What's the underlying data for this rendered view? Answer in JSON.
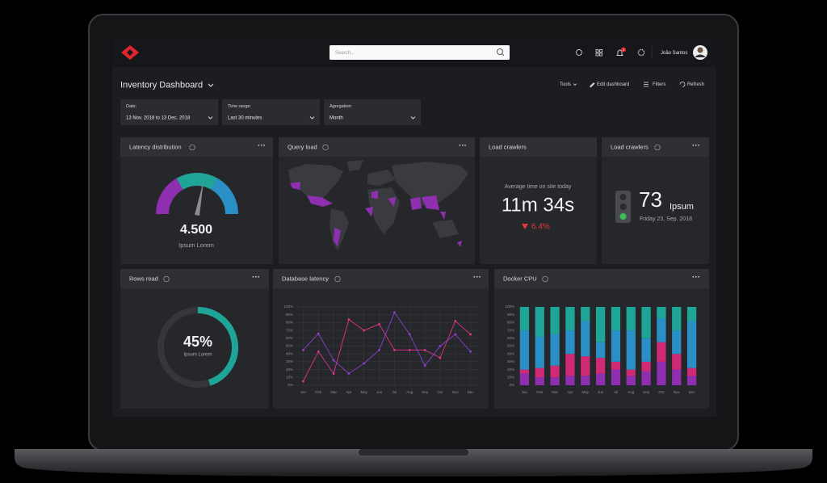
{
  "header": {
    "search_placeholder": "Search...",
    "notification_count": "3",
    "user_name": "João Santos"
  },
  "toolbar": {
    "title": "Inventory Dashboard",
    "actions": [
      "Tools",
      "Edit dashboard",
      "Filters",
      "Refresh"
    ]
  },
  "filters": [
    {
      "label": "Date:",
      "value": "13 Nov. 2018 to 13 Dec. 2018"
    },
    {
      "label": "Time range:",
      "value": "Last 30 minutes"
    },
    {
      "label": "Agregation:",
      "value": "Month"
    }
  ],
  "widgets": {
    "latency_distribution": {
      "title": "Latency distribution",
      "value": "4.500",
      "caption": "Ipsum Lorem"
    },
    "query_load": {
      "title": "Query load"
    },
    "load_crawlers_time": {
      "title": "Load crawlers",
      "caption": "Average time on site today",
      "value": "11m 34s",
      "change": "6.4%"
    },
    "load_crawlers_count": {
      "title": "Load crawlers",
      "value": 73,
      "unit": "Ipsum",
      "date": "Friday 23, Sep. 2018"
    },
    "rows_read": {
      "title": "Rows read",
      "value": 45,
      "value_label": "45%",
      "caption": "Ipsum Lorem",
      "color": "#1fa597"
    }
  },
  "chart_data": [
    {
      "type": "line",
      "title": "Database latency",
      "categories": [
        "Jan",
        "Feb",
        "Mar",
        "Apr",
        "May",
        "Jun",
        "Jul",
        "Aug",
        "Sep",
        "Oct",
        "Nov",
        "Dec"
      ],
      "series": [
        {
          "color": "#e0338a",
          "values": [
            5,
            43,
            15,
            84,
            70,
            78,
            45,
            45,
            45,
            35,
            82,
            65
          ]
        },
        {
          "color": "#8a3fd1",
          "values": [
            45,
            66,
            32,
            15,
            28,
            45,
            93,
            65,
            25,
            50,
            65,
            43
          ]
        }
      ],
      "ylim": [
        0,
        100
      ],
      "yticks": [
        {
          "value": 0,
          "label": "0%"
        },
        {
          "value": 10,
          "label": "10%"
        },
        {
          "value": 20,
          "label": "20%"
        },
        {
          "value": 30,
          "label": "30%"
        },
        {
          "value": 40,
          "label": "40%"
        },
        {
          "value": 50,
          "label": "50%"
        },
        {
          "value": 60,
          "label": "60%"
        },
        {
          "value": 70,
          "label": "70%"
        },
        {
          "value": 80,
          "label": "80%"
        },
        {
          "value": 90,
          "label": "90%"
        },
        {
          "value": 100,
          "label": "100%"
        }
      ],
      "grid": true
    },
    {
      "type": "bar",
      "stacked": true,
      "title": "Docker CPU",
      "categories": [
        "Jan",
        "Feb",
        "Mar",
        "Apr",
        "May",
        "Jun",
        "Jul",
        "Aug",
        "Sep",
        "Oct",
        "Nov",
        "Dec"
      ],
      "series": [
        {
          "color": "#8e2fb0",
          "values": [
            15,
            10,
            10,
            12,
            12,
            15,
            20,
            12,
            18,
            30,
            20,
            12
          ]
        },
        {
          "color": "#d02a74",
          "values": [
            5,
            12,
            15,
            28,
            25,
            20,
            10,
            8,
            12,
            25,
            20,
            10
          ]
        },
        {
          "color": "#2a8fc4",
          "values": [
            50,
            40,
            40,
            30,
            45,
            20,
            40,
            50,
            30,
            30,
            30,
            60
          ]
        },
        {
          "color": "#1fa597",
          "values": [
            30,
            38,
            35,
            30,
            18,
            45,
            30,
            30,
            40,
            15,
            30,
            18
          ]
        }
      ],
      "ylim": [
        0,
        100
      ],
      "yticks": [
        {
          "value": 0,
          "label": "0%"
        },
        {
          "value": 10,
          "label": "10%"
        },
        {
          "value": 20,
          "label": "20%"
        },
        {
          "value": 30,
          "label": "30%"
        },
        {
          "value": 40,
          "label": "40%"
        },
        {
          "value": 50,
          "label": "50%"
        },
        {
          "value": 60,
          "label": "60%"
        },
        {
          "value": 70,
          "label": "70%"
        },
        {
          "value": 80,
          "label": "80%"
        },
        {
          "value": 90,
          "label": "90%"
        },
        {
          "value": 100,
          "label": "100%"
        }
      ],
      "grid": false
    }
  ]
}
